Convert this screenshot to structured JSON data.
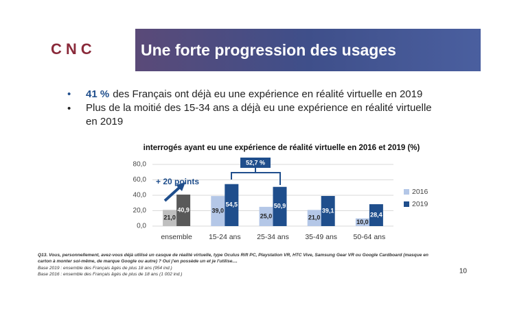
{
  "logo": "CNC",
  "header": {
    "title": "Une forte progression des usages"
  },
  "bullets": [
    {
      "highlight": "41 %",
      "text": "des Français ont déjà eu une expérience en réalité virtuelle en 2019"
    },
    {
      "text": "Plus de la moitié des 15-34 ans a déjà eu une expérience en réalité virtuelle en 2019"
    }
  ],
  "chart_data": {
    "type": "bar",
    "title": "interrogés ayant eu une expérience de réalité virtuelle en 2016 et 2019  (%)",
    "categories": [
      "ensemble",
      "15-24 ans",
      "25-34 ans",
      "35-49 ans",
      "50-64 ans"
    ],
    "series": [
      {
        "name": "2016",
        "color": "#b4c7e7",
        "colors": [
          "#bfbfbf",
          "#b4c7e7",
          "#b4c7e7",
          "#b4c7e7",
          "#b4c7e7"
        ],
        "values": [
          21.0,
          39.0,
          25.0,
          21.0,
          10.0
        ],
        "value_labels": [
          "21,0",
          "39,0",
          "25,0",
          "21,0",
          "10,0"
        ]
      },
      {
        "name": "2019",
        "color": "#1f4e8c",
        "colors": [
          "#595959",
          "#1f4e8c",
          "#1f4e8c",
          "#1f4e8c",
          "#1f4e8c"
        ],
        "values": [
          40.9,
          54.5,
          50.9,
          39.1,
          28.4
        ],
        "value_labels": [
          "40,9",
          "54,5",
          "50,9",
          "39,1",
          "28,4"
        ]
      }
    ],
    "ylim": [
      0,
      80
    ],
    "yticks": [
      {
        "value": 0,
        "label": "0,0"
      },
      {
        "value": 20,
        "label": "20,0"
      },
      {
        "value": 40,
        "label": "40,0"
      },
      {
        "value": 60,
        "label": "60,0"
      },
      {
        "value": 80,
        "label": "80,0"
      }
    ],
    "grid": true,
    "legend": "right",
    "annotations": [
      {
        "text": "52,7 %"
      },
      {
        "text": "+ 20 points"
      }
    ]
  },
  "footnotes": [
    "Q13. Vous, personnellement, avez-vous déjà utilisé un casque de réalité virtuelle, type Oculus Rift PC, Playstation VR, HTC Vive, Samsung Gear VR ou Google Cardboard (masque en",
    "carton à monter soi-même, de marque Google ou autre) ? Oui j'en possède un et je l'utilise....",
    "Base 2019 : ensemble des Français âgés de plus 18 ans (954 ind.)",
    "Base 2016 : ensemble des Français âgés de plus de 18 ans (1 002 ind.)"
  ],
  "page_number": "10"
}
